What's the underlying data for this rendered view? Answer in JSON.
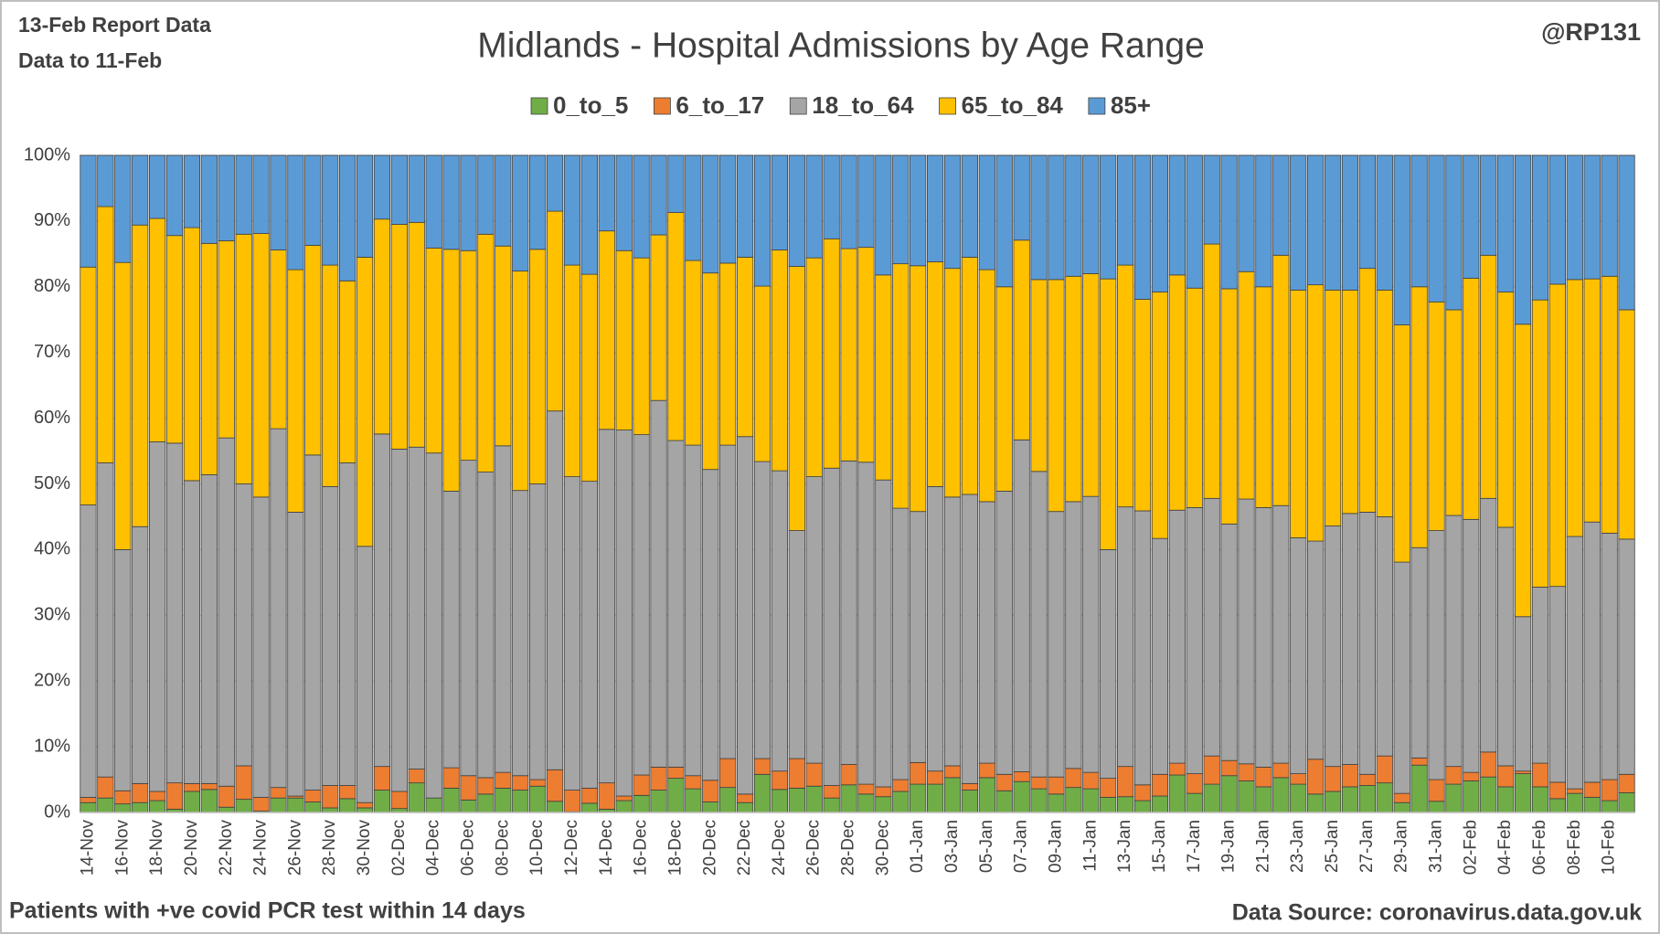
{
  "chart_data": {
    "type": "stacked_bar_percent",
    "title": "Midlands - Hospital Admissions by Age Range",
    "header_left": [
      "13-Feb Report Data",
      "Data to 11-Feb"
    ],
    "header_right": "@RP131",
    "footer_left": "Patients with  +ve covid PCR test within 14 days",
    "footer_right": "Data Source: coronavirus.data.gov.uk",
    "categories": [
      "14-Nov",
      null,
      "16-Nov",
      null,
      "18-Nov",
      null,
      "20-Nov",
      null,
      "22-Nov",
      null,
      "24-Nov",
      null,
      "26-Nov",
      null,
      "28-Nov",
      null,
      "30-Nov",
      null,
      "02-Dec",
      null,
      "04-Dec",
      null,
      "06-Dec",
      null,
      "08-Dec",
      null,
      "10-Dec",
      null,
      "12-Dec",
      null,
      "14-Dec",
      null,
      "16-Dec",
      null,
      "18-Dec",
      null,
      "20-Dec",
      null,
      "22-Dec",
      null,
      "24-Dec",
      null,
      "26-Dec",
      null,
      "28-Dec",
      null,
      "30-Dec",
      null,
      "01-Jan",
      null,
      "03-Jan",
      null,
      "05-Jan",
      null,
      "07-Jan",
      null,
      "09-Jan",
      null,
      "11-Jan",
      null,
      "13-Jan",
      null,
      "15-Jan",
      null,
      "17-Jan",
      null,
      "19-Jan",
      null,
      "21-Jan",
      null,
      "23-Jan",
      null,
      "25-Jan",
      null,
      "27-Jan",
      null,
      "29-Jan",
      null,
      "31-Jan",
      null,
      "02-Feb",
      null,
      "04-Feb",
      null,
      "06-Feb",
      null,
      "08-Feb",
      null,
      "10-Feb",
      null
    ],
    "series": [
      {
        "name": "0_to_5",
        "color": "#70ad47",
        "values": [
          1.5,
          2.2,
          1.3,
          1.5,
          1.8,
          0.5,
          3.2,
          3.5,
          0.8,
          2,
          0.2,
          2.2,
          2.2,
          1.6,
          0.7,
          2.1,
          0.7,
          3.4,
          0.6,
          4.5,
          2.2,
          3.7,
          1.9,
          2.8,
          3.7,
          3.4,
          4,
          1.7,
          0.1,
          1.4,
          0.5,
          1.8,
          2.6,
          3.4,
          5.2,
          3.6,
          1.6,
          3.8,
          1.5,
          5.8,
          3.5,
          3.7,
          4,
          2.2,
          4.2,
          2.8,
          2.4,
          3.2,
          4.3,
          4.3,
          5.3,
          3.4,
          5.3,
          3.3,
          4.7,
          3.6,
          2.8,
          3.8,
          3.6,
          2.3,
          2.4,
          1.8,
          2.5,
          5.7,
          2.9,
          4.3,
          5.6,
          4.8,
          3.9,
          5.3,
          4.3,
          2.8,
          3.2,
          3.9,
          4.1,
          4.5,
          1.5,
          7.2,
          1.7,
          4.3,
          4.8,
          5.4,
          3.9,
          5.9,
          3.9,
          2.1,
          2.9,
          2.3,
          1.8,
          3
        ]
      },
      {
        "name": "6_to_17",
        "color": "#ed7d31",
        "values": [
          0.8,
          3.2,
          2,
          2.9,
          1.4,
          4,
          1.2,
          0.9,
          3.2,
          5.1,
          2.1,
          1.6,
          0.3,
          1.8,
          3.4,
          2,
          0.8,
          3.6,
          2.6,
          2.1,
          0,
          3.1,
          3.7,
          2.5,
          2.4,
          2.2,
          1,
          4.8,
          3.3,
          2.3,
          4,
          0.7,
          3.1,
          3.5,
          1.7,
          2,
          3.3,
          4.4,
          1.3,
          2.4,
          2.8,
          4.5,
          3.5,
          1.9,
          3.1,
          1.5,
          1.5,
          1.8,
          3.3,
          2,
          1.8,
          1,
          2.2,
          2.5,
          1.5,
          1.8,
          2.6,
          2.9,
          2.5,
          2.9,
          4.6,
          2.4,
          3.3,
          1.8,
          3,
          4.3,
          2.3,
          2.6,
          3,
          2.2,
          1.6,
          5.3,
          3.8,
          3.4,
          1.7,
          4.1,
          1.4,
          1.1,
          3.3,
          2.7,
          1.3,
          3.8,
          3.2,
          0.4,
          3.6,
          2.5,
          0.7,
          2.3,
          3.2,
          2.8
        ]
      },
      {
        "name": "18_to_64",
        "color": "#a5a5a5",
        "values": [
          44.5,
          47.8,
          36.7,
          39.1,
          53.2,
          51.7,
          46.1,
          47,
          53,
          42.9,
          45.7,
          54.6,
          43.2,
          51,
          45.5,
          49.1,
          39,
          50.6,
          52.1,
          49,
          52.5,
          42.1,
          48,
          46.5,
          49.7,
          43.4,
          45,
          54.6,
          47.7,
          46.7,
          53.8,
          55.7,
          51.8,
          55.8,
          49.7,
          50.3,
          47.3,
          47.7,
          54.4,
          45.2,
          45.7,
          34.7,
          43.6,
          48.3,
          46.2,
          49,
          46.7,
          41.3,
          38.2,
          43.3,
          40.9,
          44,
          39.8,
          43.1,
          50.5,
          46.5,
          40.4,
          40.6,
          42,
          34.8,
          39.5,
          41.7,
          35.9,
          38.5,
          40.5,
          39.2,
          36,
          40.3,
          39.5,
          39.2,
          35.9,
          33.2,
          36.6,
          38.2,
          39.9,
          36.4,
          35.2,
          32,
          37.9,
          38.2,
          38.5,
          38.6,
          36.3,
          23.5,
          26.8,
          29.8,
          38.4,
          39.6,
          37.5,
          35.8
        ]
      },
      {
        "name": "65_to_84",
        "color": "#ffc000",
        "values": [
          36.2,
          39,
          43.7,
          45.9,
          34,
          31.6,
          38.5,
          35.2,
          30,
          38,
          40.1,
          27.2,
          36.9,
          31.9,
          33.7,
          27.7,
          44,
          32.7,
          34.2,
          34.2,
          31.2,
          36.8,
          31.9,
          36.2,
          30.4,
          33.4,
          35.7,
          30.4,
          32.2,
          31.5,
          30.2,
          27.3,
          26.9,
          25.2,
          34.7,
          28.1,
          29.9,
          27.7,
          27.3,
          26.7,
          33.6,
          40.2,
          33.3,
          34.9,
          32.3,
          32.7,
          31.2,
          37.2,
          37.4,
          34.2,
          34.8,
          36.1,
          35.3,
          31.1,
          30.4,
          29.2,
          35.3,
          34.3,
          33.9,
          41.2,
          36.8,
          32.2,
          37.5,
          35.8,
          33.4,
          38.7,
          35.8,
          34.6,
          33.6,
          38.1,
          37.7,
          39,
          35.9,
          34,
          37.1,
          34.5,
          36.1,
          39.7,
          34.8,
          31.3,
          36.7,
          37,
          35.8,
          44.5,
          43.7,
          46,
          39.1,
          37,
          39.1,
          34.9
        ]
      },
      {
        "name": "85+",
        "color": "#5b9bd5",
        "values": [
          17,
          7.8,
          16.3,
          10.6,
          9.6,
          12.2,
          11,
          13.4,
          13,
          12,
          11.9,
          14.4,
          17.4,
          13.7,
          16.7,
          19.1,
          15.5,
          9.7,
          10.5,
          10.2,
          14.1,
          14.3,
          14.5,
          12,
          13.8,
          17.6,
          14.3,
          8.5,
          16.7,
          18.1,
          11.5,
          14.5,
          15.6,
          12.1,
          8.7,
          16,
          17.9,
          16.4,
          15.5,
          19.9,
          14.4,
          16.9,
          15.6,
          12.7,
          14.2,
          14,
          18.2,
          16.5,
          16.8,
          16.2,
          17.2,
          15.5,
          17.4,
          20,
          12.9,
          18.9,
          18.9,
          18.4,
          18,
          18.8,
          16.7,
          21.9,
          20.8,
          18.2,
          20.2,
          13.5,
          20.3,
          17.7,
          20,
          15.2,
          20.5,
          19.7,
          20.5,
          20.5,
          17.2,
          20.5,
          25.8,
          20,
          22.3,
          23.5,
          18.7,
          15.2,
          20.8,
          25.7,
          22,
          19.6,
          18.9,
          18.8,
          18.4,
          23.5
        ]
      }
    ],
    "ylim": [
      0,
      100
    ],
    "yticks": [
      {
        "value": 0,
        "label": "0%"
      },
      {
        "value": 10,
        "label": "10%"
      },
      {
        "value": 20,
        "label": "20%"
      },
      {
        "value": 30,
        "label": "30%"
      },
      {
        "value": 40,
        "label": "40%"
      },
      {
        "value": 50,
        "label": "50%"
      },
      {
        "value": 60,
        "label": "60%"
      },
      {
        "value": 70,
        "label": "70%"
      },
      {
        "value": 80,
        "label": "80%"
      },
      {
        "value": 90,
        "label": "90%"
      },
      {
        "value": 100,
        "label": "100%"
      }
    ],
    "grid": true,
    "legend": "top"
  }
}
